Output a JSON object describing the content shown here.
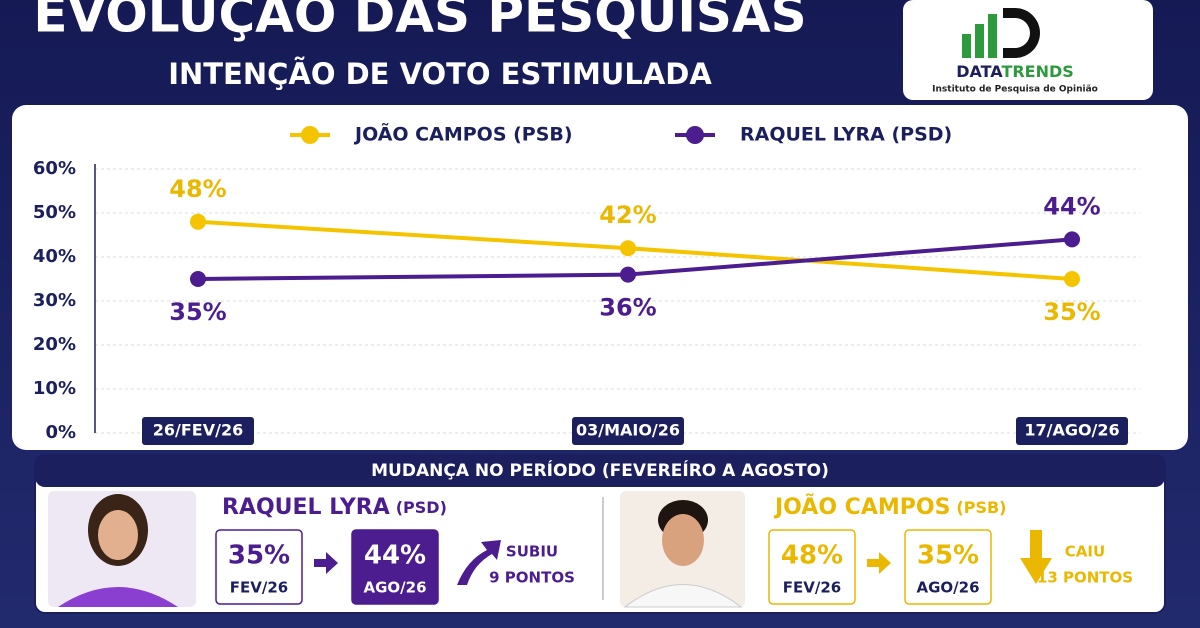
{
  "chart_data": {
    "type": "line",
    "title": "EVOLUÇÃO DAS PESQUISAS",
    "subtitle": "INTENÇÃO DE VOTO ESTIMULADA",
    "categories": [
      "26/FEV/26",
      "03/MAIO/26",
      "17/AGO/26"
    ],
    "series": [
      {
        "name": "JOÃO CAMPOS (PSB)",
        "color": "#f5c400",
        "values": [
          48,
          42,
          35
        ],
        "value_labels": [
          "48%",
          "42%",
          "35%"
        ]
      },
      {
        "name": "RAQUEL LYRA (PSD)",
        "color": "#4b1d8f",
        "values": [
          35,
          36,
          44
        ],
        "value_labels": [
          "35%",
          "36%",
          "44%"
        ]
      }
    ],
    "ylim": [
      0,
      60
    ],
    "yticks": [
      {
        "value": 0,
        "label": "0%"
      },
      {
        "value": 10,
        "label": "10%"
      },
      {
        "value": 20,
        "label": "20%"
      },
      {
        "value": 30,
        "label": "30%"
      },
      {
        "value": 40,
        "label": "40%"
      },
      {
        "value": 50,
        "label": "50%"
      },
      {
        "value": 60,
        "label": "60%"
      }
    ],
    "grid": true,
    "legend": "top"
  },
  "logo": {
    "name_part1": "DATA",
    "name_part2": "TRENDS",
    "tagline": "Instituto de Pesquisa de Opinião"
  },
  "summary": {
    "header": "MUDANÇA NO PERÍODO (FEVEREÍRO A AGOSTO)",
    "candidates": [
      {
        "name": "RAQUEL LYRA",
        "party": "(PSD)",
        "from": "35%",
        "from_label": "FEV/26",
        "to": "44%",
        "to_label": "AGO/26",
        "change_1": "SUBIU",
        "change_2": "9 PONTOS"
      },
      {
        "name": "JOÃO CAMPOS",
        "party": "(PSB)",
        "from": "48%",
        "from_label": "FEV/26",
        "to": "35%",
        "to_label": "AGO/26",
        "change_1": "CAIU",
        "change_2": "13 PONTOS"
      }
    ]
  }
}
